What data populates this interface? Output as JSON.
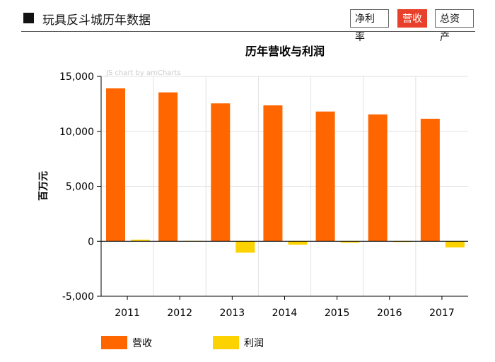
{
  "header": {
    "title": "玩具反斗城历年数据",
    "tabs": [
      {
        "label": "净利率",
        "active": false
      },
      {
        "label": "营收",
        "active": true
      },
      {
        "label": "总资产",
        "active": false
      }
    ]
  },
  "watermark": "JS chart by amCharts",
  "colors": {
    "revenue": "#ff6600",
    "profit": "#fcd202",
    "active_tab": "#e8402a"
  },
  "chart_data": {
    "type": "bar",
    "title": "历年营收与利润",
    "ylabel": "百万元",
    "xlabel": "",
    "categories": [
      "2011",
      "2012",
      "2013",
      "2014",
      "2015",
      "2016",
      "2017"
    ],
    "series": [
      {
        "name": "营收",
        "values": [
          13909,
          13543,
          12543,
          12361,
          11802,
          11540,
          11146
        ]
      },
      {
        "name": "利润",
        "values": [
          149,
          38,
          -1039,
          -312,
          -130,
          -36,
          -558
        ]
      }
    ],
    "ylim": [
      -5000,
      15000
    ],
    "yticks": [
      "15,000",
      "10,000",
      "5,000",
      "0",
      "-5,000"
    ],
    "ytick_values": [
      15000,
      10000,
      5000,
      0,
      -5000
    ],
    "grid": true,
    "legend": "bottom-left"
  }
}
